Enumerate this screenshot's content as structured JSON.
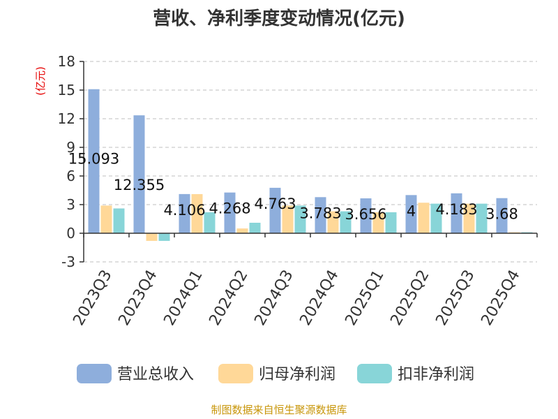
{
  "chart_data": {
    "type": "bar",
    "title": "营收、净利季度变动情况(亿元)",
    "unit_label": "(亿元)",
    "categories": [
      "2023Q3",
      "2023Q4",
      "2024Q1",
      "2024Q2",
      "2024Q3",
      "2024Q4",
      "2025Q1",
      "2025Q2",
      "2025Q3",
      "2025Q4"
    ],
    "series": [
      {
        "name": "营业总收入",
        "color": "#8eaedc",
        "values": [
          15.093,
          12.355,
          4.106,
          4.268,
          4.763,
          3.783,
          3.656,
          4.0,
          4.183,
          3.68
        ]
      },
      {
        "name": "归母净利润",
        "color": "#ffd898",
        "values": [
          2.9,
          -0.8,
          4.1,
          0.5,
          2.9,
          2.3,
          2.2,
          3.2,
          3.1,
          0.1
        ]
      },
      {
        "name": "扣非净利润",
        "color": "#88d5d8",
        "values": [
          2.6,
          -0.8,
          2.2,
          1.1,
          2.9,
          2.3,
          2.2,
          3.1,
          3.1,
          0.1
        ]
      }
    ],
    "data_labels": [
      "15.093",
      "12.355",
      "4.106",
      "4.268",
      "4.763",
      "3.783",
      "3.656",
      "4",
      "4.183",
      "3.68"
    ],
    "yticks": [
      -3,
      0,
      3,
      6,
      9,
      12,
      15,
      18
    ],
    "ylim": [
      -3,
      18
    ],
    "grid": true,
    "legend_position": "bottom"
  },
  "footer": {
    "source": "制图数据来自恒生聚源数据库"
  }
}
